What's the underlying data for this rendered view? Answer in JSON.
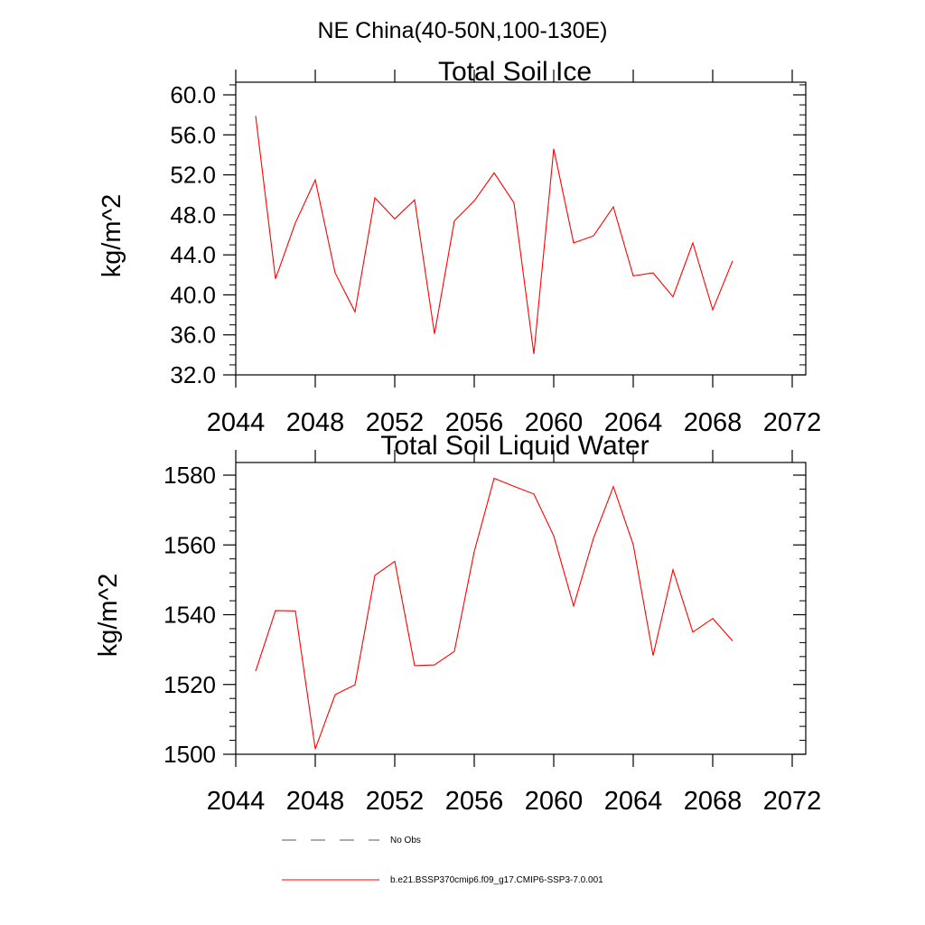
{
  "figure": {
    "title": "NE China(40-50N,100-130E)"
  },
  "chart_data": [
    {
      "type": "line",
      "title": "Total Soil Ice",
      "xlabel": "",
      "ylabel": "kg/m^2",
      "xlim": [
        2044,
        2073
      ],
      "ylim": [
        32,
        61
      ],
      "xticks": [
        2044,
        2048,
        2052,
        2056,
        2060,
        2064,
        2068,
        2072
      ],
      "xtick_labels": [
        "2044",
        "2048",
        "2052",
        "2056",
        "2060",
        "2064",
        "2068",
        "2072"
      ],
      "yticks": [
        32,
        36,
        40,
        44,
        48,
        52,
        56,
        60
      ],
      "ytick_labels": [
        "32.0",
        "36.0",
        "40.0",
        "44.0",
        "48.0",
        "52.0",
        "56.0",
        "60.0"
      ],
      "grid": false,
      "series": [
        {
          "name": "b.e21.BSSP370cmip6.f09_g17.CMIP6-SSP3-7.0.001",
          "color": "#ff0000",
          "x": [
            2045,
            2046,
            2047,
            2048,
            2049,
            2050,
            2051,
            2052,
            2053,
            2054,
            2055,
            2056,
            2057,
            2058,
            2059,
            2060,
            2061,
            2062,
            2063,
            2064,
            2065,
            2066,
            2067,
            2068,
            2069
          ],
          "y": [
            57.9,
            41.6,
            47.2,
            51.5,
            42.2,
            38.3,
            49.7,
            47.6,
            49.5,
            36.1,
            47.4,
            49.4,
            52.2,
            49.2,
            34.1,
            54.6,
            45.2,
            45.9,
            48.8,
            41.9,
            42.2,
            39.8,
            45.2,
            38.5,
            43.4
          ]
        }
      ]
    },
    {
      "type": "line",
      "title": "Total Soil Liquid Water",
      "xlabel": "",
      "ylabel": "kg/m^2",
      "xlim": [
        2044,
        2073
      ],
      "ylim": [
        1500,
        1583
      ],
      "xticks": [
        2044,
        2048,
        2052,
        2056,
        2060,
        2064,
        2068,
        2072
      ],
      "xtick_labels": [
        "2044",
        "2048",
        "2052",
        "2056",
        "2060",
        "2064",
        "2068",
        "2072"
      ],
      "yticks": [
        1500,
        1520,
        1540,
        1560,
        1580
      ],
      "ytick_labels": [
        "1500",
        "1520",
        "1540",
        "1560",
        "1580"
      ],
      "grid": false,
      "series": [
        {
          "name": "b.e21.BSSP370cmip6.f09_g17.CMIP6-SSP3-7.0.001",
          "color": "#ff0000",
          "x": [
            2045,
            2046,
            2047,
            2048,
            2049,
            2050,
            2051,
            2052,
            2053,
            2054,
            2055,
            2056,
            2057,
            2058,
            2059,
            2060,
            2061,
            2062,
            2063,
            2064,
            2065,
            2066,
            2067,
            2068,
            2069
          ],
          "y": [
            1523.8,
            1541.2,
            1541.1,
            1501.5,
            1517.1,
            1519.9,
            1551.3,
            1555.3,
            1525.4,
            1525.6,
            1529.5,
            1558.1,
            1579.1,
            1576.8,
            1574.6,
            1562.6,
            1542.5,
            1561.9,
            1576.7,
            1560.1,
            1528.3,
            1552.9,
            1535.0,
            1538.9,
            1532.5
          ]
        }
      ]
    }
  ],
  "legend": {
    "placement": "bottom",
    "items": [
      {
        "label": "No Obs",
        "color": "#4a5a8a",
        "style": "dashed"
      },
      {
        "label": "b.e21.BSSP370cmip6.f09_g17.CMIP6-SSP3-7.0.001",
        "color": "#ff0000",
        "style": "solid"
      }
    ]
  }
}
